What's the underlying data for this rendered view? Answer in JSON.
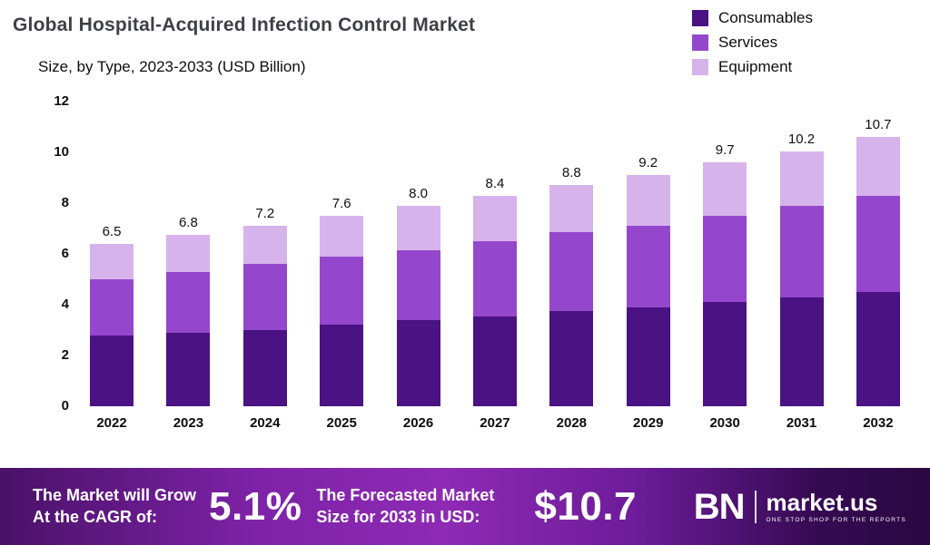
{
  "header": {
    "title": "Global Hospital-Acquired Infection Control Market",
    "subtitle": "Size, by Type, 2023-2033 (USD Billion)"
  },
  "legend": [
    {
      "label": "Consumables",
      "color": "#4a1282"
    },
    {
      "label": "Services",
      "color": "#9447cd"
    },
    {
      "label": "Equipment",
      "color": "#d7b3ec"
    }
  ],
  "chart_data": {
    "type": "bar",
    "stacked": true,
    "title": "Global Hospital-Acquired Infection Control Market Size, by Type, 2023-2033 (USD Billion)",
    "categories": [
      "2022",
      "2023",
      "2024",
      "2025",
      "2026",
      "2027",
      "2028",
      "2029",
      "2030",
      "2031",
      "2032"
    ],
    "series": [
      {
        "name": "Consumables",
        "color": "#4a1282",
        "values": [
          2.8,
          2.9,
          3.0,
          3.2,
          3.4,
          3.55,
          3.75,
          3.9,
          4.1,
          4.3,
          4.5
        ]
      },
      {
        "name": "Services",
        "color": "#9447cd",
        "values": [
          2.2,
          2.4,
          2.6,
          2.7,
          2.75,
          2.95,
          3.1,
          3.2,
          3.4,
          3.6,
          3.8
        ]
      },
      {
        "name": "Equipment",
        "color": "#d7b3ec",
        "values": [
          1.4,
          1.45,
          1.5,
          1.6,
          1.75,
          1.8,
          1.85,
          2.0,
          2.1,
          2.15,
          2.3
        ]
      }
    ],
    "totals": [
      6.5,
      6.8,
      7.2,
      7.6,
      8.0,
      8.4,
      8.8,
      9.2,
      9.7,
      10.2,
      10.7
    ],
    "ylim": [
      0,
      12
    ],
    "yticks": [
      0,
      2,
      4,
      6,
      8,
      10,
      12
    ],
    "legend_position": "top-right",
    "grid": false
  },
  "banner": {
    "growth_line1": "The Market will Grow",
    "growth_line2": "At the CAGR of:",
    "cagr_value": "5.1%",
    "forecast_line1": "The Forecasted Market",
    "forecast_line2": "Size for 2033 in USD:",
    "forecast_value": "$10.7",
    "logo_mark": "BN",
    "brand": "market.us",
    "tagline": "ONE STOP SHOP FOR THE REPORTS"
  }
}
